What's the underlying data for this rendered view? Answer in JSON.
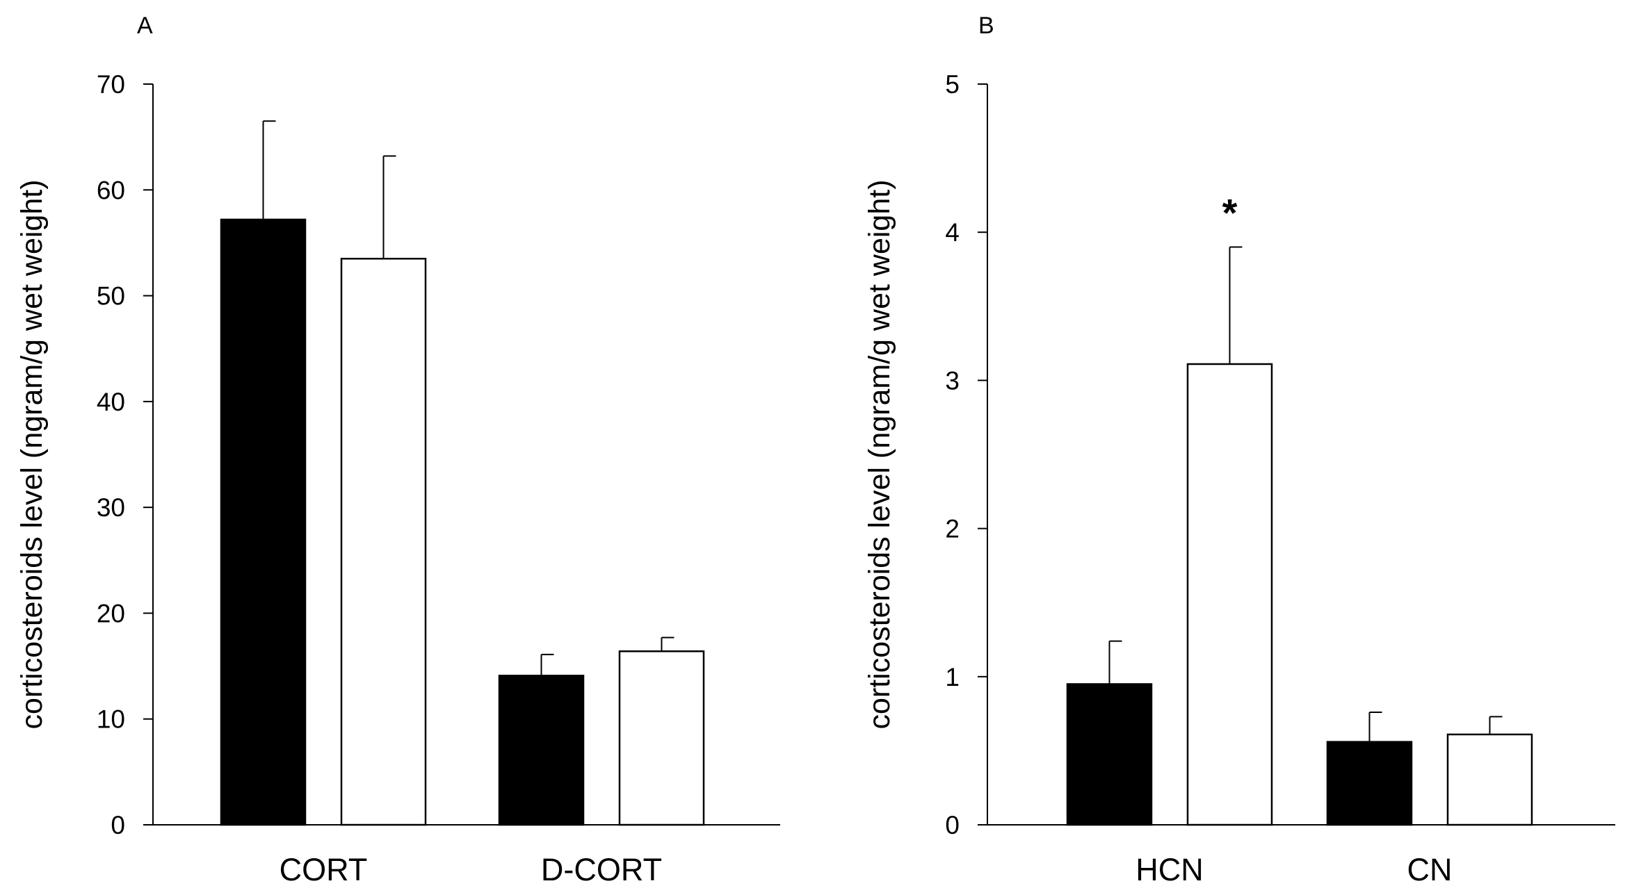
{
  "chart_data": [
    {
      "panel_label": "A",
      "type": "bar",
      "ylabel": "corticosteroids level (ngram/g wet weight)",
      "xlabel": "",
      "ylim": [
        0,
        70
      ],
      "yticks": [
        0,
        10,
        20,
        30,
        40,
        50,
        60,
        70
      ],
      "grid": false,
      "legend": "none",
      "categories": [
        "CORT",
        "D-CORT"
      ],
      "series": [
        {
          "fill": "#000000",
          "values": [
            57.2,
            14.1
          ],
          "errors": [
            9.3,
            2.0
          ]
        },
        {
          "fill": "#ffffff",
          "values": [
            53.5,
            16.4
          ],
          "errors": [
            9.7,
            1.3
          ]
        }
      ],
      "annotations": []
    },
    {
      "panel_label": "B",
      "type": "bar",
      "ylabel": "corticosteroids level (ngram/g wet weight)",
      "xlabel": "",
      "ylim": [
        0,
        5
      ],
      "yticks": [
        0,
        1,
        2,
        3,
        4,
        5
      ],
      "grid": false,
      "legend": "none",
      "categories": [
        "HCN",
        "CN"
      ],
      "series": [
        {
          "fill": "#000000",
          "values": [
            0.95,
            0.56
          ],
          "errors": [
            0.29,
            0.2
          ]
        },
        {
          "fill": "#ffffff",
          "values": [
            3.11,
            0.61
          ],
          "errors": [
            0.79,
            0.12
          ]
        }
      ],
      "annotations": [
        {
          "text": "*",
          "category_index": 0,
          "series_index": 1
        }
      ]
    }
  ]
}
